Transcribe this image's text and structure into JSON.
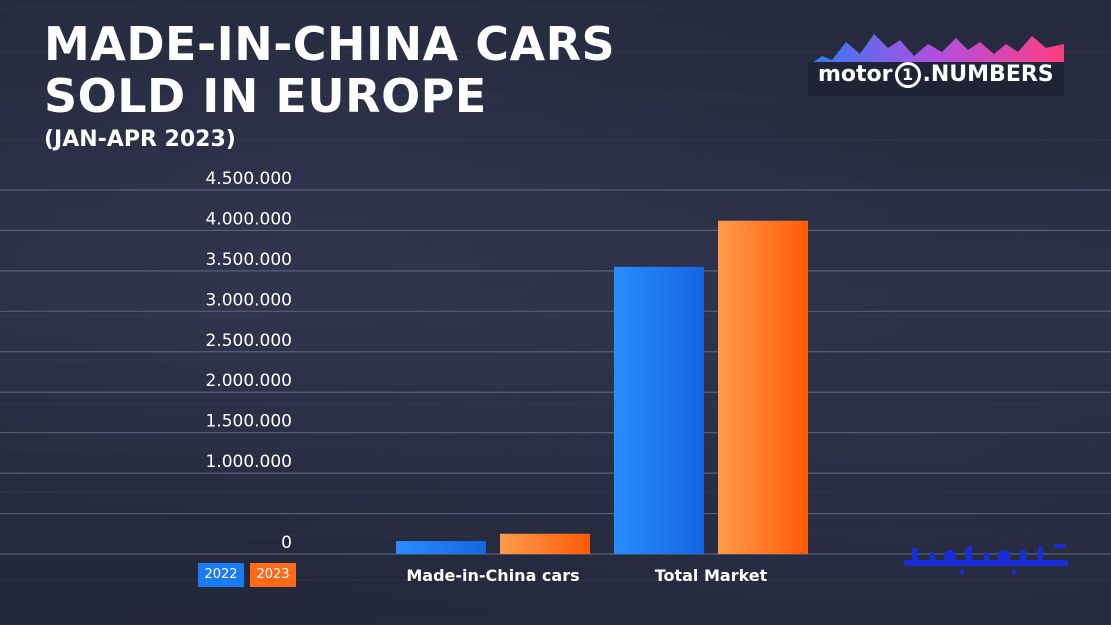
{
  "header": {
    "title": "MADE-IN-CHINA CARS SOLD IN EUROPE",
    "subtitle": "(JAN-APR 2023)"
  },
  "logo": {
    "brand": "motor",
    "mark": "1",
    "suffix": ".NUMBERS",
    "icon": "mountain-skyline-icon"
  },
  "watermark": {
    "icon": "persian-watermark-icon"
  },
  "colors": {
    "series_2022": "#1a7cf5",
    "series_2023": "#fe6a1a",
    "grid": "#5a5f78",
    "text": "#ffffff"
  },
  "chart_data": {
    "type": "bar",
    "title": "MADE-IN-CHINA CARS SOLD IN EUROPE",
    "subtitle": "(JAN-APR 2023)",
    "xlabel": "",
    "ylabel": "",
    "categories": [
      "Made-in-China cars",
      "Total Market"
    ],
    "series": [
      {
        "name": "2022",
        "values": [
          160000,
          3550000
        ],
        "color": "#1a7cf5"
      },
      {
        "name": "2023",
        "values": [
          250000,
          4120000
        ],
        "color": "#fe6a1a"
      }
    ],
    "ylim": [
      0,
      4500000
    ],
    "yticks": [
      0,
      500000,
      1000000,
      1500000,
      2000000,
      2500000,
      3000000,
      3500000,
      4000000,
      4500000
    ],
    "ytick_labels": [
      "0",
      "",
      "1.000.000",
      "1.500.000",
      "2.000.000",
      "2.500.000",
      "3.000.000",
      "3.500.000",
      "4.000.000",
      "4.500.000"
    ],
    "grid": true,
    "legend_position": "bottom-left"
  }
}
